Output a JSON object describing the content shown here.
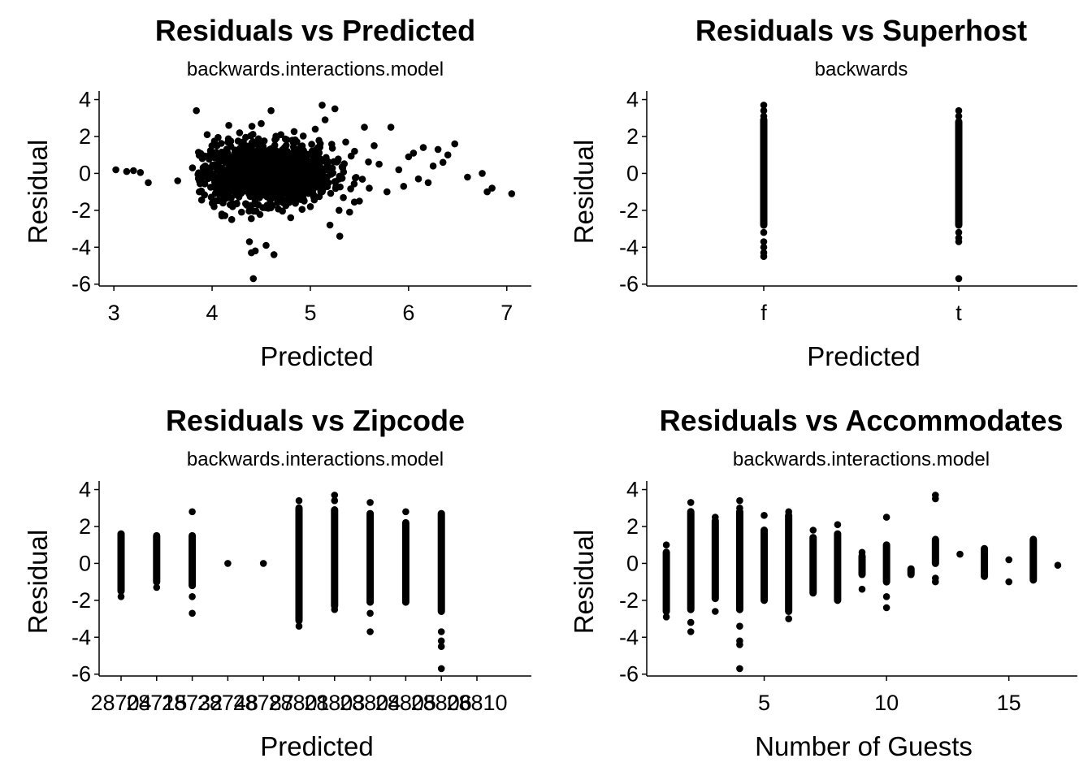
{
  "chart_data": [
    {
      "type": "scatter",
      "title": "Residuals vs Predicted",
      "subtitle": "backwards.interactions.model",
      "xlabel": "Predicted",
      "ylabel": "Residual",
      "x_ticks": [
        "3",
        "4",
        "5",
        "6",
        "7"
      ],
      "y_ticks": [
        "-6",
        "-4",
        "-2",
        "0",
        "2",
        "4"
      ],
      "xlim": [
        2.85,
        7.25
      ],
      "ylim": [
        -6.1,
        4.2
      ],
      "grid": false,
      "series": [
        {
          "x": [
            3.02,
            3.13,
            3.2,
            3.27,
            3.35,
            3.65,
            3.8,
            3.84,
            3.87,
            3.9,
            3.95,
            4.02,
            4.05,
            4.1,
            4.17,
            4.2,
            4.28,
            4.3,
            4.38,
            4.4,
            4.42,
            4.44,
            4.5,
            4.55,
            4.6,
            4.63,
            4.7,
            4.8,
            4.9,
            5.0,
            5.05,
            5.12,
            5.15,
            5.2,
            5.25,
            5.3,
            5.36,
            5.4,
            5.45,
            5.5,
            5.55,
            5.6,
            5.65,
            5.7,
            5.78,
            5.82,
            5.9,
            5.95,
            6.0,
            6.05,
            6.1,
            6.15,
            6.2,
            6.25,
            6.3,
            6.35,
            6.4,
            6.47,
            6.6,
            6.75,
            6.8,
            6.85,
            7.05
          ],
          "y": [
            0.2,
            0.1,
            0.15,
            0.05,
            -0.5,
            -0.4,
            0.3,
            3.4,
            -1.0,
            0.8,
            2.1,
            -1.8,
            1.5,
            -2.3,
            2.6,
            -2.5,
            2.2,
            -2.1,
            -3.7,
            -4.3,
            -5.7,
            -4.2,
            2.7,
            -3.9,
            3.4,
            -4.4,
            2.1,
            -2.4,
            1.4,
            -1.8,
            2.4,
            3.7,
            2.9,
            -2.8,
            3.5,
            -3.4,
            1.7,
            -2.1,
            1.2,
            -1.5,
            2.5,
            -0.8,
            1.5,
            0.5,
            -1.0,
            2.5,
            0.2,
            -0.7,
            0.9,
            1.1,
            -0.3,
            1.4,
            -0.5,
            0.4,
            1.3,
            0.6,
            1.0,
            1.6,
            -0.2,
            0.0,
            -1.0,
            -0.8,
            -1.1
          ]
        }
      ]
    },
    {
      "type": "scatter",
      "title": "Residuals vs Superhost",
      "subtitle": "backwards",
      "xlabel": "Predicted",
      "ylabel": "Residual",
      "categories": [
        "f",
        "t"
      ],
      "y_ticks": [
        "-6",
        "-4",
        "-2",
        "0",
        "2",
        "4"
      ],
      "ylim": [
        -6.1,
        4.2
      ],
      "grid": false,
      "series": [
        {
          "name": "f",
          "ymin": -2.8,
          "ymax": 2.9,
          "outliers": [
            3.7,
            3.4,
            3.1,
            -3.2,
            -3.7,
            -4.0,
            -4.3,
            -4.5
          ]
        },
        {
          "name": "t",
          "ymin": -2.8,
          "ymax": 2.8,
          "outliers": [
            3.4,
            3.1,
            -3.2,
            -3.5,
            -3.7,
            -5.7
          ]
        }
      ]
    },
    {
      "type": "scatter",
      "title": "Residuals vs Zipcode",
      "subtitle": "backwards.interactions.model",
      "xlabel": "Predicted",
      "ylabel": "Residual",
      "x_tick_labels": [
        "28704",
        "28715",
        "28732",
        "28748",
        "28787",
        "28801",
        "28803",
        "28804",
        "28805",
        "28806",
        "28810"
      ],
      "y_ticks": [
        "-6",
        "-4",
        "-2",
        "0",
        "2",
        "4"
      ],
      "ylim": [
        -6.1,
        4.2
      ],
      "grid": false,
      "series": [
        {
          "name": "28704",
          "ymin": -1.5,
          "ymax": 1.6,
          "outliers": [
            -1.8
          ]
        },
        {
          "name": "28715",
          "ymin": -1.0,
          "ymax": 1.5,
          "outliers": [
            -1.3
          ]
        },
        {
          "name": "28732",
          "ymin": -1.2,
          "ymax": 1.5,
          "outliers": [
            2.8,
            -1.8,
            -2.7
          ]
        },
        {
          "name": "28748",
          "ymin": 0.0,
          "ymax": 0.0,
          "outliers": []
        },
        {
          "name": "28787",
          "ymin": 0.0,
          "ymax": 0.0,
          "outliers": []
        },
        {
          "name": "28801",
          "ymin": -3.1,
          "ymax": 3.0,
          "outliers": [
            3.4,
            -3.4
          ]
        },
        {
          "name": "28803",
          "ymin": -2.3,
          "ymax": 2.9,
          "outliers": [
            3.7,
            3.4,
            -2.5
          ]
        },
        {
          "name": "28804",
          "ymin": -2.1,
          "ymax": 2.7,
          "outliers": [
            3.3,
            -2.7,
            -3.7
          ]
        },
        {
          "name": "28805",
          "ymin": -2.1,
          "ymax": 2.2,
          "outliers": [
            2.8
          ]
        },
        {
          "name": "28806",
          "ymin": -2.6,
          "ymax": 2.7,
          "outliers": [
            -3.7,
            -4.2,
            -4.5,
            -5.7
          ]
        },
        {
          "name": "28810",
          "ymin": null,
          "ymax": null,
          "outliers": []
        }
      ]
    },
    {
      "type": "scatter",
      "title": "Residuals vs Accommodates",
      "subtitle": "backwards.interactions.model",
      "xlabel": "Number of Guests",
      "ylabel": "Residual",
      "x_ticks": [
        "5",
        "10",
        "15"
      ],
      "y_ticks": [
        "-6",
        "-4",
        "-2",
        "0",
        "2",
        "4"
      ],
      "xlim": [
        0.2,
        17.8
      ],
      "ylim": [
        -6.1,
        4.2
      ],
      "grid": false,
      "series": [
        {
          "name": "1",
          "ymin": -2.6,
          "ymax": 0.6,
          "outliers": [
            1.0,
            -2.9
          ]
        },
        {
          "name": "2",
          "ymin": -2.5,
          "ymax": 2.8,
          "outliers": [
            3.3,
            -3.2,
            -3.7
          ]
        },
        {
          "name": "3",
          "ymin": -1.9,
          "ymax": 2.3,
          "outliers": [
            2.5,
            -2.6
          ]
        },
        {
          "name": "4",
          "ymin": -2.5,
          "ymax": 2.8,
          "outliers": [
            3.4,
            3.0,
            -3.4,
            -4.2,
            -4.4,
            -5.7
          ]
        },
        {
          "name": "5",
          "ymin": -2.0,
          "ymax": 1.8,
          "outliers": [
            2.6
          ]
        },
        {
          "name": "6",
          "ymin": -2.6,
          "ymax": 2.6,
          "outliers": [
            2.8,
            -3.0
          ]
        },
        {
          "name": "7",
          "ymin": -1.6,
          "ymax": 1.4,
          "outliers": [
            1.8
          ]
        },
        {
          "name": "8",
          "ymin": -2.0,
          "ymax": 1.6,
          "outliers": [
            2.1
          ]
        },
        {
          "name": "9",
          "ymin": -0.6,
          "ymax": 0.4,
          "outliers": [
            0.6,
            -1.4
          ]
        },
        {
          "name": "10",
          "ymin": -1.0,
          "ymax": 1.0,
          "outliers": [
            2.5,
            -2.4,
            -1.8
          ]
        },
        {
          "name": "11",
          "ymin": -0.6,
          "ymax": -0.3,
          "outliers": []
        },
        {
          "name": "12",
          "ymin": 0.0,
          "ymax": 1.3,
          "outliers": [
            3.7,
            3.5,
            -0.8,
            -1.0
          ]
        },
        {
          "name": "13",
          "ymin": 0.5,
          "ymax": 0.5,
          "outliers": []
        },
        {
          "name": "14",
          "ymin": -0.7,
          "ymax": 0.8,
          "outliers": [
            -0.6
          ]
        },
        {
          "name": "15",
          "ymin": 0.2,
          "ymax": 0.2,
          "outliers": [
            -1.0
          ]
        },
        {
          "name": "16",
          "ymin": -0.9,
          "ymax": 1.3,
          "outliers": [
            0.0,
            -0.5
          ]
        },
        {
          "name": "17",
          "ymin": -0.1,
          "ymax": -0.1,
          "outliers": []
        }
      ]
    }
  ]
}
